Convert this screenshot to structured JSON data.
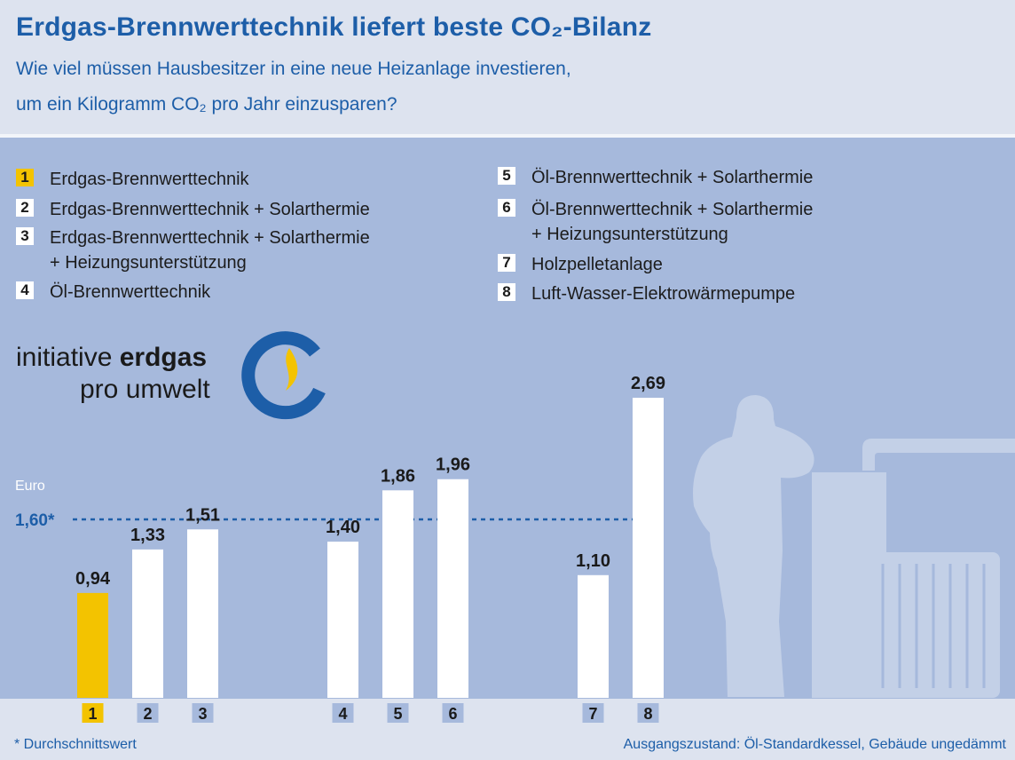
{
  "header": {
    "title": "Erdgas-Brennwerttechnik liefert beste CO₂-Bilanz",
    "subtitle_line1": "Wie viel müssen Hausbesitzer in eine neue Heizanlage investieren,",
    "subtitle_line2": "um ein Kilogramm CO₂ pro Jahr einzusparen?"
  },
  "legend": {
    "left": [
      {
        "num": "1",
        "text": "Erdgas-Brennwerttechnik",
        "highlight": true
      },
      {
        "num": "2",
        "text": "Erdgas-Brennwerttechnik + Solarthermie"
      },
      {
        "num": "3",
        "text": "Erdgas-Brennwerttechnik + Solarthermie",
        "text2": "+ Heizungsunterstützung"
      },
      {
        "num": "4",
        "text": "Öl-Brennwerttechnik"
      }
    ],
    "right": [
      {
        "num": "5",
        "text": "Öl-Brennwerttechnik + Solarthermie"
      },
      {
        "num": "6",
        "text": "Öl-Brennwerttechnik + Solarthermie",
        "text2": "+ Heizungsunterstützung"
      },
      {
        "num": "7",
        "text": "Holzpelletanlage"
      },
      {
        "num": "8",
        "text": "Luft-Wasser-Elektrowärmepumpe"
      }
    ]
  },
  "logo": {
    "line1_regular": "initiative ",
    "line1_bold": "erdgas",
    "line2": "pro umwelt",
    "icon": "initiative-erdgas-logo-icon"
  },
  "chart_data": {
    "type": "bar",
    "ylabel": "Euro",
    "categories": [
      "1",
      "2",
      "3",
      "4",
      "5",
      "6",
      "7",
      "8"
    ],
    "values": [
      0.94,
      1.33,
      1.51,
      1.4,
      1.86,
      1.96,
      1.1,
      2.69
    ],
    "value_labels": [
      "0,94",
      "1,33",
      "1,51",
      "1,40",
      "1,86",
      "1,96",
      "1,10",
      "2,69"
    ],
    "highlight_index": 0,
    "reference_line": {
      "value": 1.6,
      "label": "1,60*"
    },
    "ylim": [
      0,
      2.69
    ],
    "colors": {
      "bar": "#ffffff",
      "highlight": "#f3c300",
      "reference": "#1d5ea8",
      "label": "#1a1a1a",
      "tick_box": "#a6b9dc"
    }
  },
  "footer": {
    "left": "* Durchschnittswert",
    "right": "Ausgangszustand: Öl-Standardkessel, Gebäude ungedämmt"
  },
  "colors": {
    "title": "#1d5ea8",
    "background": "#a6b9dc",
    "header_bg": "#dde3ef",
    "silhouette": "#c3d0e7"
  }
}
